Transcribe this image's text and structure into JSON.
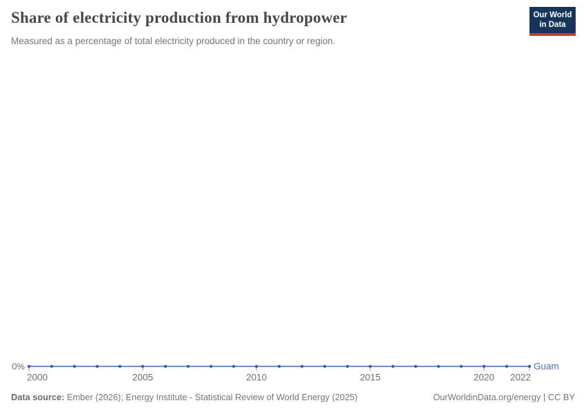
{
  "header": {
    "title": "Share of electricity production from hydropower",
    "subtitle": "Measured as a percentage of total electricity produced in the country or region.",
    "logo": {
      "line1": "Our World",
      "line2": "in Data",
      "bg_color": "#16355a",
      "accent_color": "#d0353f"
    }
  },
  "chart_data": {
    "type": "line",
    "title": "Share of electricity production from hydropower",
    "xlabel": "",
    "ylabel": "",
    "x": [
      2000,
      2001,
      2002,
      2003,
      2004,
      2005,
      2006,
      2007,
      2008,
      2009,
      2010,
      2011,
      2012,
      2013,
      2014,
      2015,
      2016,
      2017,
      2018,
      2019,
      2020,
      2021,
      2022
    ],
    "series": [
      {
        "name": "Guam",
        "values": [
          0,
          0,
          0,
          0,
          0,
          0,
          0,
          0,
          0,
          0,
          0,
          0,
          0,
          0,
          0,
          0,
          0,
          0,
          0,
          0,
          0,
          0,
          0
        ]
      }
    ],
    "x_ticks": [
      2000,
      2005,
      2010,
      2015,
      2020,
      2022
    ],
    "y_tick_label": "0%",
    "y_min": 0,
    "grid": false,
    "legend_position": "end-of-line",
    "entity_label": "Guam",
    "line_color": "#5b7cba",
    "marker_color": "#3e5f9e",
    "entity_label_color": "#4d72b0",
    "axis_text_color": "#6e6e6e",
    "tick_color": "#8e9bb3"
  },
  "footer": {
    "datasource_label": "Data source:",
    "datasource_text": " Ember (2026); Energy Institute - Statistical Review of World Energy (2025)",
    "link_text": "OurWorldinData.org/energy | CC BY"
  }
}
